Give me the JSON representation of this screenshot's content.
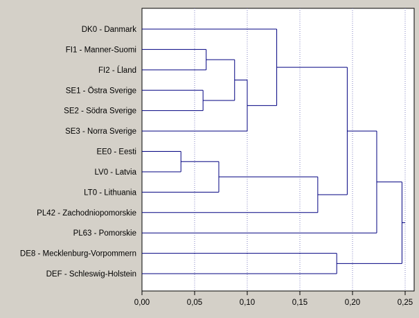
{
  "colors": {
    "background": "#d4d0c8",
    "plot_background": "#ffffff",
    "tree_line": "#000080",
    "grid_line": "#8080c0",
    "text": "#000000"
  },
  "chart_data": {
    "type": "dendrogram",
    "orientation": "horizontal",
    "title": "",
    "xlabel": "",
    "ylabel": "",
    "xlim": [
      0,
      0.25
    ],
    "grid": "vertical dotted lines at major ticks",
    "x_ticks": [
      0.0,
      0.05,
      0.1,
      0.15,
      0.2,
      0.25
    ],
    "x_tick_labels": [
      "0,00",
      "0,05",
      "0,10",
      "0,15",
      "0,20",
      "0,25"
    ],
    "leaves": [
      {
        "id": "DK0",
        "label": "DK0 - Danmark"
      },
      {
        "id": "FI1",
        "label": "FI1 - Manner-Suomi"
      },
      {
        "id": "FI2",
        "label": "FI2 - Ĺland"
      },
      {
        "id": "SE1",
        "label": "SE1 - Östra Sverige"
      },
      {
        "id": "SE2",
        "label": "SE2 - Södra Sverige"
      },
      {
        "id": "SE3",
        "label": "SE3 - Norra Sverige"
      },
      {
        "id": "EE0",
        "label": "EE0 - Eesti"
      },
      {
        "id": "LV0",
        "label": "LV0 - Latvia"
      },
      {
        "id": "LT0",
        "label": "LT0 - Lithuania"
      },
      {
        "id": "PL42",
        "label": "PL42 - Zachodniopomorskie"
      },
      {
        "id": "PL63",
        "label": "PL63 - Pomorskie"
      },
      {
        "id": "DE8",
        "label": "DE8 - Mecklenburg-Vorpommern"
      },
      {
        "id": "DEF",
        "label": "DEF - Schleswig-Holstein"
      }
    ],
    "merges": [
      {
        "id": "m1",
        "left": "EE0",
        "right": "LV0",
        "height": 0.037
      },
      {
        "id": "m2",
        "left": "SE1",
        "right": "SE2",
        "height": 0.058
      },
      {
        "id": "m3",
        "left": "FI1",
        "right": "FI2",
        "height": 0.061
      },
      {
        "id": "m4",
        "left": "m1",
        "right": "LT0",
        "height": 0.073
      },
      {
        "id": "m5",
        "left": "m3",
        "right": "m2",
        "height": 0.088
      },
      {
        "id": "m6",
        "left": "m5",
        "right": "SE3",
        "height": 0.1
      },
      {
        "id": "m7",
        "left": "DK0",
        "right": "m6",
        "height": 0.128
      },
      {
        "id": "m8",
        "left": "m4",
        "right": "PL42",
        "height": 0.167
      },
      {
        "id": "m9",
        "left": "DE8",
        "right": "DEF",
        "height": 0.185
      },
      {
        "id": "m10",
        "left": "m7",
        "right": "m8",
        "height": 0.195
      },
      {
        "id": "m11",
        "left": "m10",
        "right": "PL63",
        "height": 0.223
      },
      {
        "id": "m12",
        "left": "m11",
        "right": "m9",
        "height": 0.247
      }
    ]
  }
}
